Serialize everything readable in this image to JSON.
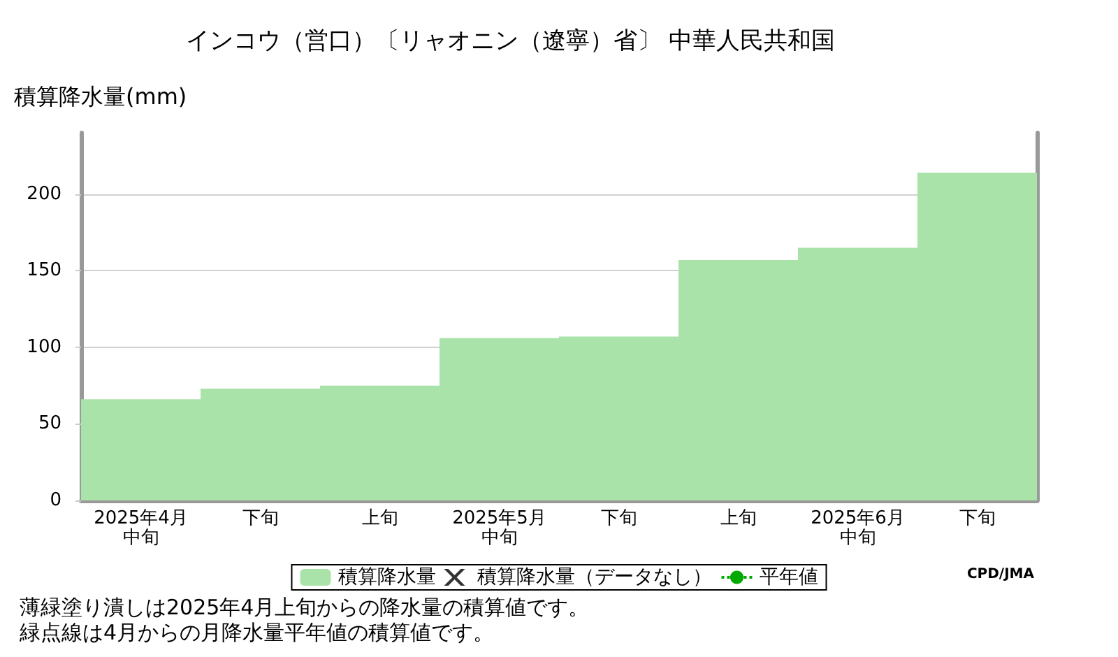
{
  "chart_data": {
    "type": "bar",
    "title": "インコウ（営口）〔リャオニン（遼寧）省〕 中華人民共和国",
    "ylabel": "積算降水量(mm)",
    "categories": [
      "2025年4月中旬",
      "下旬",
      "上旬",
      "2025年5月中旬",
      "下旬",
      "上旬",
      "2025年6月中旬",
      "下旬"
    ],
    "series": [
      {
        "name": "積算降水量",
        "color": "#aae3aa",
        "values": [
          66,
          73,
          75,
          106,
          107,
          157,
          165,
          214
        ]
      },
      {
        "name": "積算降水量（データなし）",
        "type": "scatter",
        "marker": "cross",
        "color": "#000000",
        "values": [
          null,
          null,
          null,
          null,
          null,
          null,
          null,
          null
        ]
      },
      {
        "name": "平年値",
        "type": "line",
        "line_style": "dotted",
        "marker": "none",
        "color": "#00aa00",
        "values": [
          null,
          null,
          null,
          null,
          null,
          null,
          null,
          null
        ]
      }
    ],
    "ylim": [
      0,
      240
    ],
    "yticks": [
      0,
      50,
      100,
      150,
      200
    ],
    "grid": "y",
    "legend": "bottom",
    "annotations": [
      "CPD/JMA",
      "薄緑塗り潰しは2025年4月上旬からの降水量の積算値です。",
      "緑点線は4月からの月降水量平年値の積算値です。"
    ]
  }
}
